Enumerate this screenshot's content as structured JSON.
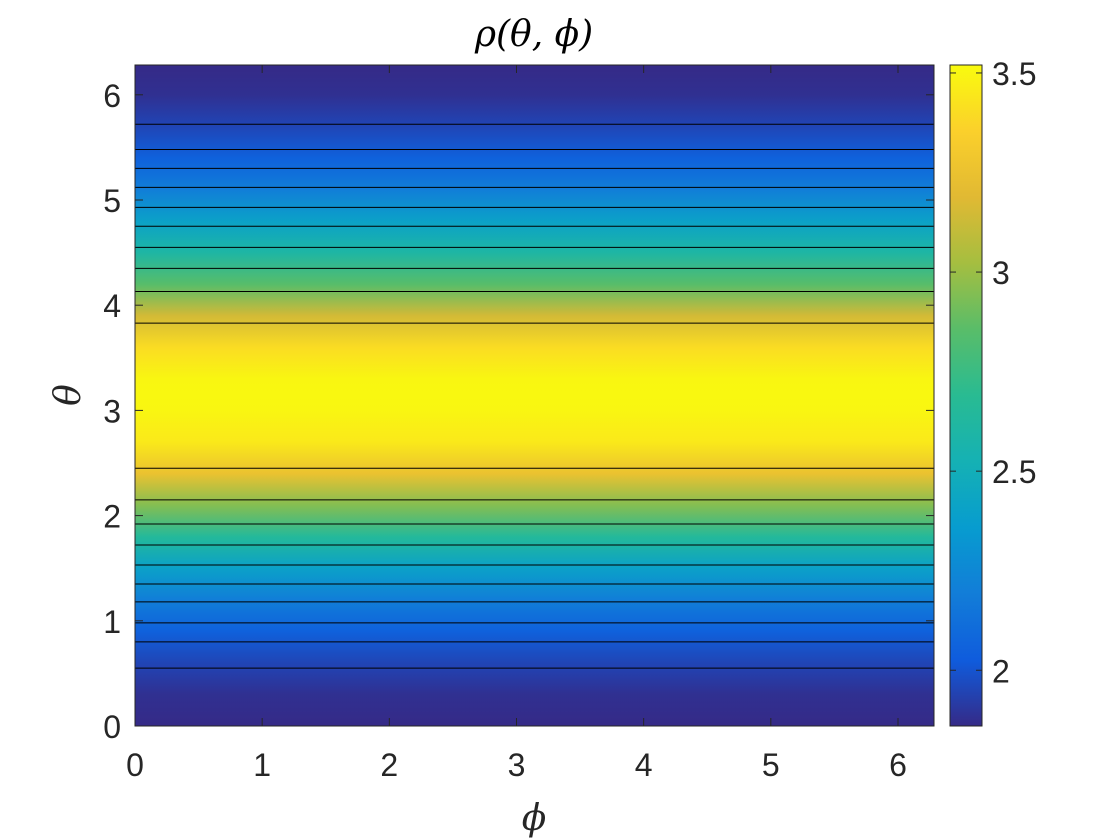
{
  "chart_data": {
    "type": "heatmap",
    "title": "ρ(θ, ϕ)",
    "xlabel": "ϕ",
    "ylabel": "θ",
    "xlim": [
      0,
      6.2832
    ],
    "ylim": [
      0,
      6.2832
    ],
    "x_ticks": [
      0,
      1,
      2,
      3,
      4,
      5,
      6
    ],
    "y_ticks": [
      0,
      1,
      2,
      3,
      4,
      5,
      6
    ],
    "colorbar": {
      "range": [
        1.86,
        3.52
      ],
      "ticks": [
        2,
        2.5,
        3,
        3.5
      ],
      "tick_labels": [
        "2",
        "2.5",
        "3",
        "3.5"
      ],
      "colormap": "parula"
    },
    "field": {
      "description_of_variation": "constant in phi, varies with theta",
      "theta": [
        0.0,
        0.3,
        0.6,
        0.9,
        1.2,
        1.5,
        1.8,
        2.1,
        2.4,
        2.7,
        3.0,
        3.14,
        3.3,
        3.6,
        3.9,
        4.2,
        4.5,
        4.8,
        5.1,
        5.4,
        5.7,
        6.0,
        6.28
      ],
      "rho": [
        1.86,
        1.88,
        1.95,
        2.05,
        2.2,
        2.4,
        2.65,
        2.95,
        3.25,
        3.45,
        3.5,
        3.51,
        3.5,
        3.4,
        3.15,
        2.85,
        2.6,
        2.4,
        2.2,
        2.05,
        1.95,
        1.88,
        1.86
      ]
    },
    "contour_levels_theta": [
      0.55,
      0.8,
      0.98,
      1.18,
      1.35,
      1.53,
      1.72,
      1.92,
      2.15,
      2.45,
      3.83,
      4.13,
      4.35,
      4.55,
      4.75,
      4.93,
      5.12,
      5.3,
      5.48,
      5.72
    ],
    "colors": {
      "contour_line": "#000000",
      "axis": "#262626"
    }
  }
}
